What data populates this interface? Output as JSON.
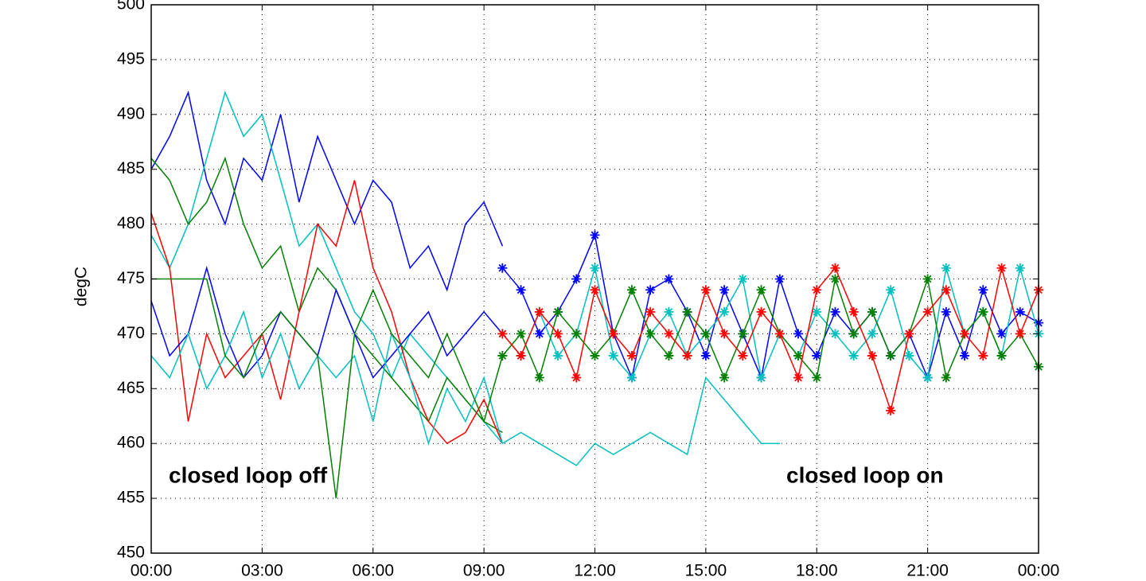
{
  "chart_data": {
    "type": "line",
    "ylabel": "degC",
    "annotations": [
      "closed loop off",
      "closed loop on"
    ],
    "xlim": [
      0,
      24
    ],
    "xticks": [
      {
        "value": 0,
        "label": "00:00"
      },
      {
        "value": 3,
        "label": "03:00"
      },
      {
        "value": 6,
        "label": "06:00"
      },
      {
        "value": 9,
        "label": "09:00"
      },
      {
        "value": 12,
        "label": "12:00"
      },
      {
        "value": 15,
        "label": "15:00"
      },
      {
        "value": 18,
        "label": "18:00"
      },
      {
        "value": 21,
        "label": "21:00"
      },
      {
        "value": 24,
        "label": "00:00"
      }
    ],
    "ylim": [
      450,
      500
    ],
    "yticks": [
      450,
      455,
      460,
      465,
      470,
      475,
      480,
      485,
      490,
      495,
      500
    ],
    "grid": true,
    "series": [
      {
        "color": "#0000ff",
        "marker": "none",
        "x": [
          0,
          0.5,
          1,
          1.5,
          2,
          2.5,
          3,
          3.5,
          4,
          4.5,
          5,
          5.5,
          6,
          6.5,
          7,
          7.5,
          8,
          8.5,
          9,
          9.5
        ],
        "values": [
          485,
          488,
          492,
          484,
          480,
          486,
          484,
          490,
          482,
          488,
          484,
          480,
          484,
          482,
          476,
          478,
          474,
          480,
          482,
          478
        ]
      },
      {
        "color": "#00bfbf",
        "marker": "none",
        "x": [
          0,
          0.5,
          1,
          1.5,
          2,
          2.5,
          3,
          3.5,
          4,
          4.5,
          5,
          5.5,
          6,
          6.5,
          7,
          7.5,
          8,
          8.5,
          9,
          9.5
        ],
        "values": [
          479,
          476,
          480,
          486,
          492,
          488,
          490,
          484,
          478,
          480,
          476,
          472,
          470,
          466,
          470,
          468,
          466,
          464,
          462,
          460
        ]
      },
      {
        "color": "#008000",
        "marker": "none",
        "x": [
          0,
          0.5,
          1,
          1.5,
          2,
          2.5,
          3,
          3.5,
          4,
          4.5,
          5,
          5.5,
          6,
          6.5,
          7,
          7.5,
          8,
          8.5,
          9,
          9.5
        ],
        "values": [
          486,
          484,
          480,
          482,
          486,
          480,
          476,
          478,
          472,
          476,
          474,
          470,
          468,
          466,
          464,
          462,
          466,
          464,
          462,
          461
        ]
      },
      {
        "color": "#ff0000",
        "marker": "none",
        "x": [
          0,
          0.5,
          1,
          1.5,
          2,
          2.5,
          3,
          3.5,
          4,
          4.5,
          5,
          5.5,
          6,
          6.5,
          7,
          7.5,
          8,
          8.5,
          9,
          9.5
        ],
        "values": [
          481,
          476,
          462,
          470,
          466,
          468,
          470,
          464,
          472,
          480,
          478,
          484,
          476,
          472,
          466,
          462,
          460,
          461,
          464,
          460
        ]
      },
      {
        "color": "#0000ff",
        "marker": "none",
        "x": [
          0,
          0.5,
          1,
          1.5,
          2,
          2.5,
          3,
          3.5,
          4,
          4.5,
          5,
          5.5,
          6,
          6.5,
          7,
          7.5,
          8,
          8.5,
          9,
          9.5
        ],
        "values": [
          473,
          468,
          470,
          476,
          470,
          466,
          468,
          472,
          470,
          468,
          474,
          470,
          466,
          468,
          470,
          472,
          468,
          470,
          472,
          470
        ]
      },
      {
        "color": "#00bfbf",
        "marker": "none",
        "x": [
          0,
          0.5,
          1,
          1.5,
          2,
          2.5,
          3,
          3.5,
          4,
          4.5,
          5,
          5.5,
          6,
          6.5,
          7,
          7.5,
          8,
          8.5,
          9,
          9.5
        ],
        "values": [
          468,
          466,
          470,
          465,
          468,
          472,
          466,
          470,
          465,
          468,
          466,
          468,
          462,
          470,
          466,
          460,
          465,
          462,
          466,
          460
        ]
      },
      {
        "color": "#008000",
        "marker": "none",
        "x": [
          0,
          0.5,
          1,
          1.5,
          2,
          2.5,
          3,
          3.5,
          4,
          4.5,
          5,
          5.5,
          6,
          6.5,
          7,
          7.5,
          8,
          8.5,
          9,
          9.5
        ],
        "values": [
          475,
          475,
          475,
          475,
          468,
          466,
          470,
          472,
          470,
          468,
          455,
          470,
          474,
          470,
          468,
          466,
          470,
          466,
          462,
          468
        ]
      },
      {
        "color": "#00bfbf",
        "marker": "none",
        "x": [
          9.5,
          10,
          10.5,
          11,
          11.5,
          12,
          12.5,
          13,
          13.5,
          14,
          14.5,
          15,
          15.5,
          16,
          16.5,
          17
        ],
        "values": [
          460,
          461,
          460,
          459,
          458,
          460,
          459,
          460,
          461,
          460,
          459,
          466,
          464,
          462,
          460,
          460
        ]
      },
      {
        "color": "#0000ff",
        "marker": "star",
        "x": [
          9.5,
          10,
          10.5,
          11,
          11.5,
          12,
          12.5,
          13,
          13.5,
          14,
          14.5,
          15,
          15.5,
          16,
          16.5,
          17,
          17.5,
          18,
          18.5,
          19,
          19.5,
          20,
          20.5,
          21,
          21.5,
          22,
          22.5,
          23,
          23.5,
          24
        ],
        "values": [
          476,
          474,
          470,
          472,
          475,
          479,
          470,
          466,
          474,
          475,
          472,
          468,
          474,
          470,
          466,
          475,
          470,
          468,
          472,
          470,
          472,
          468,
          470,
          466,
          472,
          468,
          474,
          470,
          472,
          471
        ]
      },
      {
        "color": "#00bfbf",
        "marker": "star",
        "x": [
          9.5,
          10,
          10.5,
          11,
          11.5,
          12,
          12.5,
          13,
          13.5,
          14,
          14.5,
          15,
          15.5,
          16,
          16.5,
          17,
          17.5,
          18,
          18.5,
          19,
          19.5,
          20,
          20.5,
          21,
          21.5,
          22,
          22.5,
          23,
          23.5,
          24
        ],
        "values": [
          470,
          468,
          472,
          468,
          470,
          476,
          468,
          466,
          470,
          472,
          468,
          470,
          472,
          475,
          466,
          470,
          468,
          472,
          470,
          468,
          470,
          474,
          468,
          466,
          476,
          470,
          472,
          468,
          476,
          470
        ]
      },
      {
        "color": "#008000",
        "marker": "star",
        "x": [
          9.5,
          10,
          10.5,
          11,
          11.5,
          12,
          12.5,
          13,
          13.5,
          14,
          14.5,
          15,
          15.5,
          16,
          16.5,
          17,
          17.5,
          18,
          18.5,
          19,
          19.5,
          20,
          20.5,
          21,
          21.5,
          22,
          22.5,
          23,
          23.5,
          24
        ],
        "values": [
          468,
          470,
          466,
          472,
          470,
          468,
          470,
          474,
          470,
          468,
          472,
          470,
          466,
          470,
          474,
          470,
          468,
          466,
          475,
          470,
          472,
          468,
          470,
          475,
          466,
          470,
          472,
          468,
          470,
          467
        ]
      },
      {
        "color": "#ff0000",
        "marker": "star",
        "x": [
          9.5,
          10,
          10.5,
          11,
          11.5,
          12,
          12.5,
          13,
          13.5,
          14,
          14.5,
          15,
          15.5,
          16,
          16.5,
          17,
          17.5,
          18,
          18.5,
          19,
          19.5,
          20,
          20.5,
          21,
          21.5,
          22,
          22.5,
          23,
          23.5,
          24
        ],
        "values": [
          470,
          468,
          472,
          470,
          466,
          474,
          470,
          468,
          472,
          470,
          468,
          474,
          470,
          468,
          472,
          470,
          466,
          474,
          476,
          472,
          468,
          463,
          470,
          472,
          474,
          470,
          468,
          476,
          470,
          474
        ]
      }
    ]
  }
}
